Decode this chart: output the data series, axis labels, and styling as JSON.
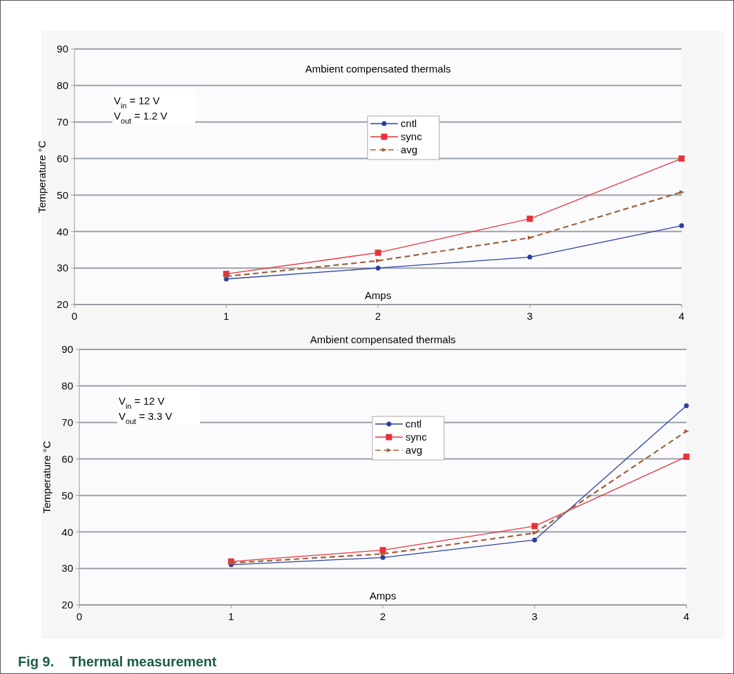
{
  "chart_data": [
    {
      "type": "line",
      "title": "Ambient compensated thermals",
      "xlabel": "Amps",
      "ylabel": "Temperature °C",
      "x": [
        1,
        2,
        3,
        4
      ],
      "xlim": [
        0,
        4
      ],
      "xticks": [
        0,
        1,
        2,
        3,
        4
      ],
      "ylim": [
        20,
        90
      ],
      "yticks": [
        20,
        30,
        40,
        50,
        60,
        70,
        80,
        90
      ],
      "grid": "y",
      "legend": "top",
      "annotations": [
        "V$_{in}$ = 12 V",
        "V$_{out}$ = 1.2 V"
      ],
      "series": [
        {
          "name": "cntl",
          "color": "#2b3fa0",
          "marker": "circle",
          "line_style": "solid",
          "values": [
            27,
            30,
            33,
            41.6
          ]
        },
        {
          "name": "sync",
          "color": "#e8323a",
          "marker": "square",
          "line_style": "solid",
          "values": [
            28.4,
            34.2,
            43.5,
            60
          ]
        },
        {
          "name": "avg",
          "color": "#a0603a",
          "marker": "triangle",
          "line_style": "dashed",
          "values": [
            27.7,
            32,
            38.3,
            50.8
          ]
        }
      ]
    },
    {
      "type": "line",
      "title": "Ambient compensated thermals",
      "xlabel": "Amps",
      "ylabel": "Temperature °C",
      "x": [
        1,
        2,
        3,
        4
      ],
      "xlim": [
        0,
        4
      ],
      "xticks": [
        0,
        1,
        2,
        3,
        4
      ],
      "ylim": [
        20,
        90
      ],
      "yticks": [
        20,
        30,
        40,
        50,
        60,
        70,
        80,
        90
      ],
      "grid": "y",
      "legend": "top",
      "annotations": [
        "V$_{in}$ = 12 V",
        "V$_{out}$ = 3.3 V",
        "Fig 9.    Thermal measurement"
      ],
      "series": [
        {
          "name": "cntl",
          "color": "#2b3fa0",
          "marker": "circle",
          "line_style": "solid",
          "values": [
            31,
            33,
            37.8,
            74.6
          ]
        },
        {
          "name": "sync",
          "color": "#e8323a",
          "marker": "square",
          "line_style": "solid",
          "values": [
            31.9,
            35,
            41.6,
            60.6
          ]
        },
        {
          "name": "avg",
          "color": "#a0603a",
          "marker": "triangle",
          "line_style": "dashed",
          "values": [
            31.5,
            34,
            39.7,
            67.6
          ]
        }
      ]
    }
  ]
}
